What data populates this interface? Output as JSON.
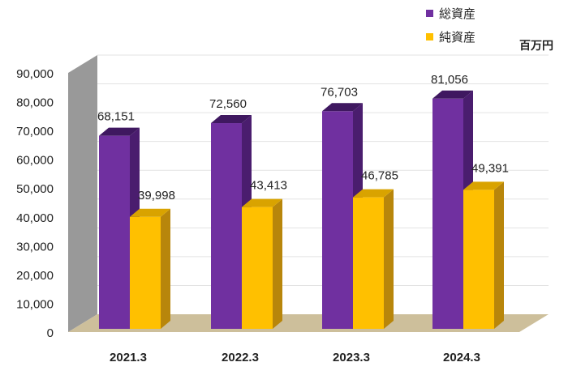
{
  "chart_data": {
    "type": "bar",
    "title": "",
    "unit_label": "百万円",
    "categories": [
      "2021.3",
      "2022.3",
      "2023.3",
      "2024.3"
    ],
    "series": [
      {
        "name": "総資産",
        "values": [
          68151,
          72560,
          76703,
          81056
        ],
        "color": "#7030A0"
      },
      {
        "name": "純資産",
        "values": [
          39998,
          43413,
          46785,
          49391
        ],
        "color": "#FFC000"
      }
    ],
    "data_labels": {
      "総資産": [
        "68,151",
        "72,560",
        "76,703",
        "81,056"
      ],
      "純資産": [
        "39,998",
        "43,413",
        "46,785",
        "49,391"
      ]
    },
    "y_ticks": [
      "0",
      "10,000",
      "20,000",
      "30,000",
      "40,000",
      "50,000",
      "60,000",
      "70,000",
      "80,000",
      "90,000"
    ],
    "ylim": [
      0,
      90000
    ],
    "grid": true,
    "legend_position": "top-right",
    "style": "3d-column"
  }
}
